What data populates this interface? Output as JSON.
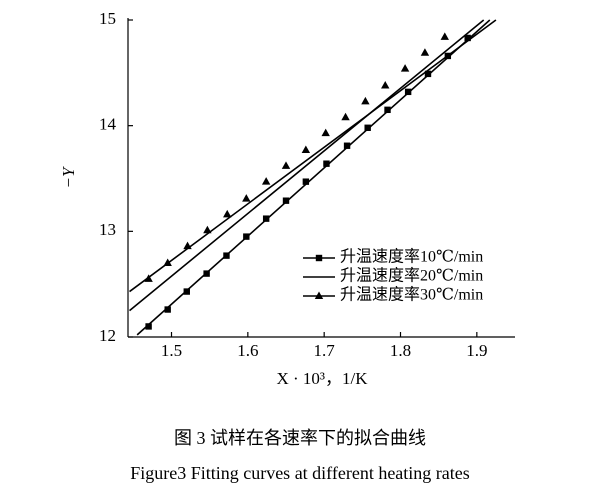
{
  "chart_data": {
    "type": "line",
    "x_label": "X · 10³，1/K",
    "y_label": "−Y",
    "xlim": [
      1.443,
      1.95
    ],
    "xticks": [
      1.5,
      1.6,
      1.7,
      1.8,
      1.9
    ],
    "ylim": [
      12,
      15
    ],
    "yticks": [
      12,
      13,
      14,
      15
    ],
    "legend": "lower right",
    "series": [
      {
        "name": "升温速度率10℃/min",
        "color": "#000000",
        "marker": "square",
        "x": [
          1.47,
          1.495,
          1.52,
          1.546,
          1.572,
          1.598,
          1.624,
          1.65,
          1.676,
          1.703,
          1.73,
          1.757,
          1.783,
          1.81,
          1.836,
          1.862,
          1.888
        ],
        "values": [
          12.1,
          12.26,
          12.43,
          12.6,
          12.77,
          12.95,
          13.12,
          13.29,
          13.47,
          13.64,
          13.81,
          13.98,
          14.15,
          14.32,
          14.49,
          14.66,
          14.83
        ],
        "fit": {
          "x": [
            1.455,
            1.917
          ],
          "values": [
            12.02,
            15
          ]
        }
      },
      {
        "name": "升温速度率20℃/min",
        "color": "#000000",
        "marker": "none",
        "x": [],
        "values": [],
        "fit": {
          "x": [
            1.445,
            1.909
          ],
          "values": [
            12.25,
            15
          ]
        }
      },
      {
        "name": "升温速度率30℃/min",
        "color": "#000000",
        "marker": "triangle",
        "x": [
          1.47,
          1.495,
          1.521,
          1.547,
          1.573,
          1.598,
          1.624,
          1.65,
          1.676,
          1.702,
          1.728,
          1.754,
          1.78,
          1.806,
          1.832,
          1.858
        ],
        "values": [
          12.55,
          12.7,
          12.86,
          13.01,
          13.16,
          13.31,
          13.47,
          13.62,
          13.77,
          13.93,
          14.08,
          14.23,
          14.38,
          14.54,
          14.69,
          14.84
        ],
        "fit": {
          "x": [
            1.445,
            1.925
          ],
          "values": [
            12.43,
            15
          ]
        }
      }
    ]
  },
  "caption": {
    "chinese": "图 3  试样在各速率下的拟合曲线",
    "english": "Figure3    Fitting curves at different heating rates"
  }
}
